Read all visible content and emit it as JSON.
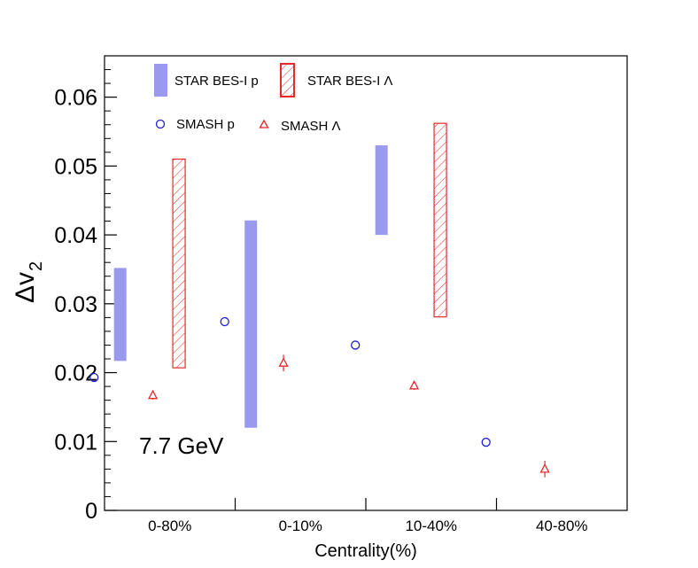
{
  "chart_data": {
    "type": "scatter",
    "annotation": "7.7 GeV",
    "xlabel": "Centrality(%)",
    "ylabel_main": "Δv",
    "ylabel_sub": "2",
    "categories": [
      "0-80%",
      "0-10%",
      "10-40%",
      "40-80%"
    ],
    "ylim": [
      0,
      0.066
    ],
    "yticks": [
      0,
      0.01,
      0.02,
      0.03,
      0.04,
      0.05,
      0.06
    ],
    "ytick_labels": [
      "0",
      "0.01",
      "0.02",
      "0.03",
      "0.04",
      "0.05",
      "0.06"
    ],
    "series": [
      {
        "name": "STAR BES-I p",
        "kind": "band",
        "color": "#9999ee",
        "low": [
          0.0217,
          0.012,
          0.04,
          null
        ],
        "high": [
          0.0352,
          0.0421,
          0.053,
          null
        ]
      },
      {
        "name": "STAR BES-I Λ",
        "kind": "hatched-band",
        "color": "#e8282a",
        "low": [
          0.0207,
          null,
          0.0281,
          null
        ],
        "high": [
          0.051,
          null,
          0.0562,
          null
        ]
      },
      {
        "name": "SMASH p",
        "kind": "circle",
        "color": "#1f1fd6",
        "values": [
          0.0193,
          0.0274,
          0.024,
          0.0099
        ]
      },
      {
        "name": "SMASH Λ",
        "kind": "triangle",
        "color": "#e8282a",
        "values": [
          0.0167,
          0.0214,
          0.0181,
          0.006
        ],
        "errors": [
          0.0006,
          0.0012,
          0.0006,
          0.0012
        ]
      }
    ],
    "legend_position": "top-left"
  }
}
